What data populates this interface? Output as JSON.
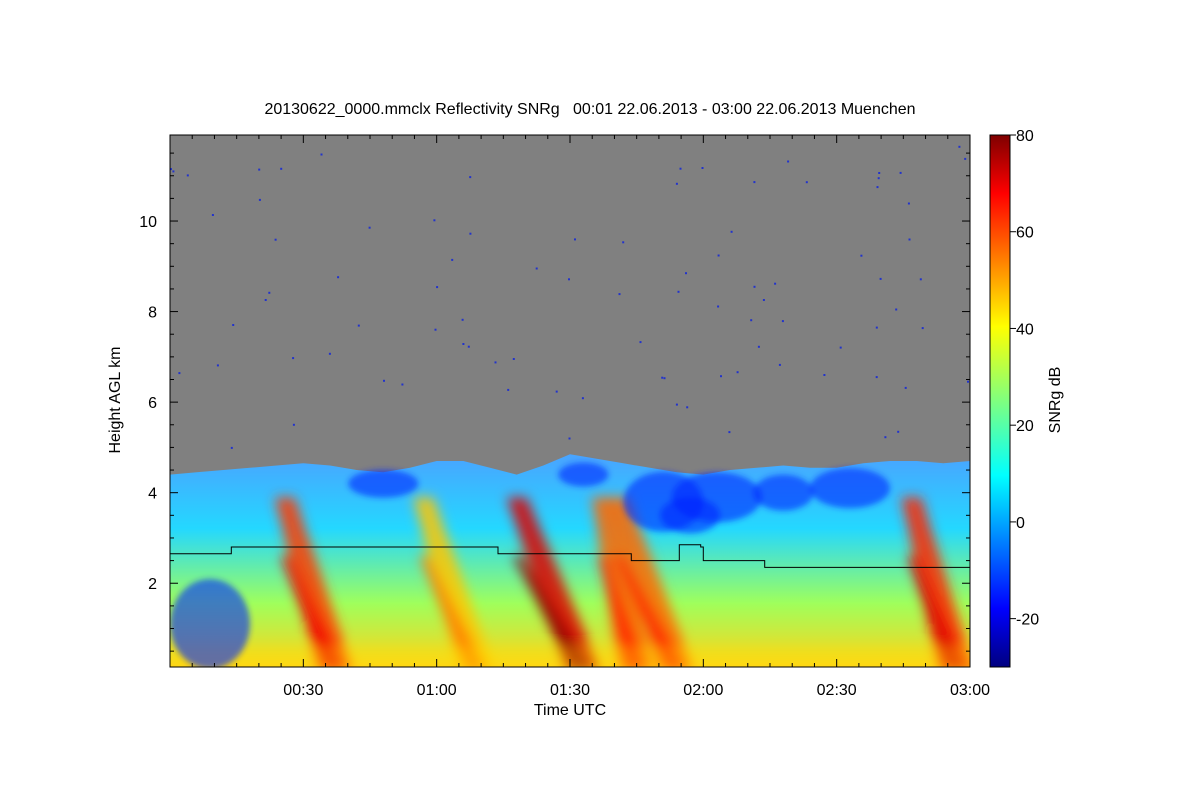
{
  "chart_data": {
    "type": "heatmap",
    "title": "20130622_0000.mmclx Reflectivity SNRg   00:01 22.06.2013 - 03:00 22.06.2013 Muenchen",
    "xlabel": "Time UTC",
    "ylabel": "Height AGL km",
    "colorbar_label": "SNRg dB",
    "x_range_hours": [
      0.0,
      3.0
    ],
    "x_ticks": [
      {
        "value": 0.5,
        "label": "00:30"
      },
      {
        "value": 1.0,
        "label": "01:00"
      },
      {
        "value": 1.5,
        "label": "01:30"
      },
      {
        "value": 2.0,
        "label": "02:00"
      },
      {
        "value": 2.5,
        "label": "02:30"
      },
      {
        "value": 3.0,
        "label": "03:00"
      }
    ],
    "y_range_km": [
      0.15,
      11.9
    ],
    "y_ticks": [
      {
        "value": 2,
        "label": "2"
      },
      {
        "value": 4,
        "label": "4"
      },
      {
        "value": 6,
        "label": "6"
      },
      {
        "value": 8,
        "label": "8"
      },
      {
        "value": 10,
        "label": "10"
      }
    ],
    "colorbar_range_db": [
      -30,
      80
    ],
    "colorbar_ticks": [
      {
        "value": -20,
        "label": "-20"
      },
      {
        "value": 0,
        "label": "0"
      },
      {
        "value": 20,
        "label": "20"
      },
      {
        "value": 40,
        "label": "40"
      },
      {
        "value": 60,
        "label": "60"
      },
      {
        "value": 80,
        "label": "80"
      }
    ],
    "colormap": "jet",
    "no_signal_color": "#808080",
    "signal_top_km": [
      [
        0.0,
        4.4
      ],
      [
        0.1,
        4.45
      ],
      [
        0.2,
        4.5
      ],
      [
        0.3,
        4.55
      ],
      [
        0.4,
        4.6
      ],
      [
        0.5,
        4.65
      ],
      [
        0.6,
        4.6
      ],
      [
        0.7,
        4.5
      ],
      [
        0.8,
        4.45
      ],
      [
        0.9,
        4.55
      ],
      [
        1.0,
        4.7
      ],
      [
        1.1,
        4.7
      ],
      [
        1.2,
        4.55
      ],
      [
        1.3,
        4.4
      ],
      [
        1.4,
        4.6
      ],
      [
        1.5,
        4.85
      ],
      [
        1.6,
        4.75
      ],
      [
        1.7,
        4.65
      ],
      [
        1.8,
        4.55
      ],
      [
        1.9,
        4.45
      ],
      [
        2.0,
        4.4
      ],
      [
        2.1,
        4.5
      ],
      [
        2.2,
        4.55
      ],
      [
        2.3,
        4.6
      ],
      [
        2.4,
        4.55
      ],
      [
        2.5,
        4.55
      ],
      [
        2.6,
        4.65
      ],
      [
        2.7,
        4.7
      ],
      [
        2.8,
        4.7
      ],
      [
        2.9,
        4.65
      ],
      [
        3.0,
        4.7
      ]
    ],
    "intense_streaks": [
      {
        "time_at_top": 0.43,
        "time_at_ground": 0.62,
        "peak_db": 60
      },
      {
        "time_at_top": 0.95,
        "time_at_ground": 1.15,
        "peak_db": 45
      },
      {
        "time_at_top": 1.3,
        "time_at_ground": 1.55,
        "peak_db": 70
      },
      {
        "time_at_top": 1.62,
        "time_at_ground": 1.75,
        "peak_db": 55
      },
      {
        "time_at_top": 1.68,
        "time_at_ground": 1.9,
        "peak_db": 55
      },
      {
        "time_at_top": 2.78,
        "time_at_ground": 2.95,
        "peak_db": 62
      }
    ],
    "boundary_layer_line_km": [
      [
        0.0,
        2.65
      ],
      [
        0.23,
        2.65
      ],
      [
        0.23,
        2.8
      ],
      [
        1.23,
        2.8
      ],
      [
        1.23,
        2.65
      ],
      [
        1.73,
        2.65
      ],
      [
        1.73,
        2.5
      ],
      [
        1.91,
        2.5
      ],
      [
        1.91,
        2.85
      ],
      [
        1.99,
        2.85
      ],
      [
        1.99,
        2.8
      ],
      [
        2.0,
        2.8
      ],
      [
        2.0,
        2.5
      ],
      [
        2.23,
        2.5
      ],
      [
        2.23,
        2.35
      ],
      [
        3.0,
        2.35
      ]
    ],
    "line_color": "#000000"
  }
}
